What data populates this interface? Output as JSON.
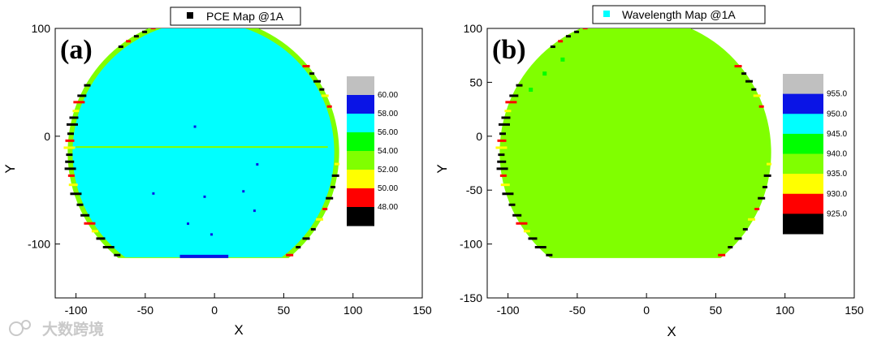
{
  "chart_data": [
    {
      "type": "heatmap",
      "panel_label": "(a)",
      "legend": "PCE Map @1A",
      "xlabel": "X",
      "ylabel": "Y",
      "xlim": [
        -115,
        150
      ],
      "ylim": [
        -150,
        100
      ],
      "x_ticks": [
        "-100",
        "-50",
        "0",
        "50",
        "100",
        "150"
      ],
      "y_ticks": [
        "100",
        "0",
        "-100"
      ],
      "x_tick_values": [
        -100,
        -50,
        0,
        50,
        100,
        150
      ],
      "y_tick_values": [
        100,
        0,
        -100
      ],
      "colorbar_labels": [
        "60.00",
        "58.00",
        "56.00",
        "54.00",
        "52.00",
        "50.00",
        "48.00"
      ],
      "colorbar_colors": [
        "#c0c0c0",
        "#0a14e6",
        "#00ffff",
        "#00ff00",
        "#80ff00",
        "#ffff00",
        "#ff0000",
        "#000000"
      ],
      "dominant_color": "#00ffff",
      "edge_color": "#80ff00",
      "wafer": {
        "center": [
          -8,
          -15
        ],
        "radius": 98,
        "flat_y": -113
      }
    },
    {
      "type": "heatmap",
      "panel_label": "(b)",
      "legend": "Wavelength Map @1A",
      "xlabel": "X",
      "ylabel": "Y",
      "xlim": [
        -115,
        150
      ],
      "ylim": [
        -150,
        100
      ],
      "x_ticks": [
        "-100",
        "-50",
        "0",
        "50",
        "100",
        "150"
      ],
      "y_ticks": [
        "100",
        "50",
        "0",
        "-50",
        "-100",
        "-150"
      ],
      "x_tick_values": [
        -100,
        -50,
        0,
        50,
        100,
        150
      ],
      "y_tick_values": [
        100,
        50,
        0,
        -50,
        -100,
        -150
      ],
      "colorbar_labels": [
        "955.0",
        "950.0",
        "945.0",
        "940.0",
        "935.0",
        "930.0",
        "925.0"
      ],
      "colorbar_colors": [
        "#c0c0c0",
        "#0a14e6",
        "#00ffff",
        "#00ff00",
        "#80ff00",
        "#ffff00",
        "#ff0000",
        "#000000"
      ],
      "dominant_color": "#80ff00",
      "edge_color": "#80ff00",
      "wafer": {
        "center": [
          -8,
          -15
        ],
        "radius": 98,
        "flat_y": -113
      }
    }
  ],
  "watermark": {
    "text": "大数跨境"
  }
}
